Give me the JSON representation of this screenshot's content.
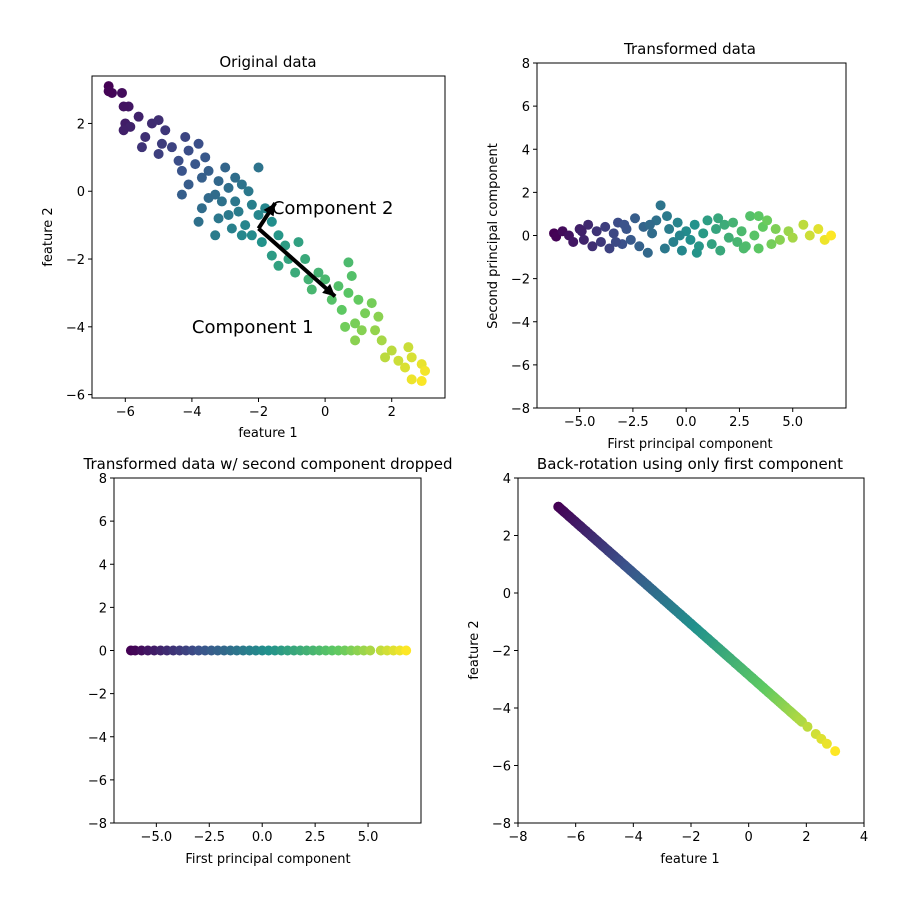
{
  "chart_data": [
    {
      "type": "scatter",
      "title": "Original data",
      "xlabel": "feature 1",
      "ylabel": "feature 2",
      "xlim": [
        -7,
        3.6
      ],
      "ylim": [
        -6.1,
        3.4
      ],
      "xticks": [
        -6,
        -4,
        -2,
        0,
        2
      ],
      "yticks": [
        -6,
        -4,
        -2,
        0,
        2
      ],
      "colormap": [
        "#440154",
        "#3b528b",
        "#21918c",
        "#5ec962",
        "#fde725"
      ],
      "points": [
        [
          -6.5,
          3.1
        ],
        [
          -6.4,
          2.9
        ],
        [
          -6.5,
          2.95
        ],
        [
          -6.1,
          2.9
        ],
        [
          -5.9,
          2.5
        ],
        [
          -6.05,
          2.5
        ],
        [
          -6.0,
          2.0
        ],
        [
          -5.85,
          1.9
        ],
        [
          -6.05,
          1.8
        ],
        [
          -5.6,
          2.2
        ],
        [
          -5.4,
          1.6
        ],
        [
          -5.2,
          2.0
        ],
        [
          -5.0,
          2.1
        ],
        [
          -4.8,
          1.8
        ],
        [
          -5.5,
          1.3
        ],
        [
          -5.0,
          1.1
        ],
        [
          -4.9,
          1.4
        ],
        [
          -4.6,
          1.3
        ],
        [
          -4.4,
          0.9
        ],
        [
          -4.2,
          1.6
        ],
        [
          -4.1,
          1.2
        ],
        [
          -3.8,
          1.4
        ],
        [
          -4.3,
          0.6
        ],
        [
          -3.9,
          0.8
        ],
        [
          -3.7,
          0.4
        ],
        [
          -3.5,
          0.6
        ],
        [
          -3.6,
          1.0
        ],
        [
          -3.2,
          0.3
        ],
        [
          -3.0,
          0.7
        ],
        [
          -2.7,
          0.4
        ],
        [
          -3.3,
          -0.1
        ],
        [
          -2.9,
          0.1
        ],
        [
          -2.5,
          0.2
        ],
        [
          -2.3,
          0.0
        ],
        [
          -2.7,
          -0.3
        ],
        [
          -3.1,
          -0.3
        ],
        [
          -3.7,
          -0.5
        ],
        [
          -3.5,
          -0.2
        ],
        [
          -2.0,
          0.7
        ],
        [
          -2.2,
          -0.4
        ],
        [
          -2.6,
          -0.6
        ],
        [
          -2.9,
          -0.7
        ],
        [
          -3.2,
          -0.8
        ],
        [
          -2.4,
          -1.0
        ],
        [
          -2.0,
          -0.7
        ],
        [
          -1.8,
          -0.5
        ],
        [
          -1.6,
          -0.9
        ],
        [
          -2.2,
          -1.3
        ],
        [
          -2.5,
          -1.3
        ],
        [
          -1.9,
          -1.5
        ],
        [
          -1.4,
          -1.3
        ],
        [
          -1.2,
          -1.6
        ],
        [
          -1.6,
          -1.9
        ],
        [
          -1.1,
          -2.0
        ],
        [
          -0.8,
          -1.5
        ],
        [
          -0.9,
          -2.4
        ],
        [
          -1.4,
          -2.2
        ],
        [
          -0.6,
          -2.0
        ],
        [
          -0.5,
          -2.6
        ],
        [
          -0.2,
          -2.4
        ],
        [
          -0.4,
          -2.9
        ],
        [
          0.0,
          -2.6
        ],
        [
          0.2,
          -3.2
        ],
        [
          0.4,
          -2.8
        ],
        [
          0.7,
          -3.0
        ],
        [
          0.5,
          -3.5
        ],
        [
          0.8,
          -2.5
        ],
        [
          0.7,
          -2.1
        ],
        [
          1.0,
          -3.2
        ],
        [
          1.2,
          -3.6
        ],
        [
          0.9,
          -3.9
        ],
        [
          0.6,
          -4.0
        ],
        [
          1.1,
          -4.1
        ],
        [
          1.4,
          -3.3
        ],
        [
          1.6,
          -3.7
        ],
        [
          1.5,
          -4.1
        ],
        [
          1.7,
          -4.4
        ],
        [
          0.9,
          -4.4
        ],
        [
          1.8,
          -4.9
        ],
        [
          2.0,
          -4.7
        ],
        [
          2.2,
          -5.0
        ],
        [
          2.5,
          -4.6
        ],
        [
          2.6,
          -4.9
        ],
        [
          2.4,
          -5.2
        ],
        [
          2.9,
          -5.1
        ],
        [
          2.6,
          -5.55
        ],
        [
          2.9,
          -5.6
        ],
        [
          3.0,
          -5.3
        ],
        [
          -2.8,
          -1.1
        ],
        [
          -3.3,
          -1.3
        ],
        [
          -3.8,
          -0.9
        ],
        [
          -4.1,
          0.2
        ],
        [
          -4.3,
          -0.1
        ]
      ],
      "arrows": [
        {
          "from": [
            -2.0,
            -1.1
          ],
          "to": [
            0.3,
            -3.1
          ]
        },
        {
          "from": [
            -2.0,
            -1.1
          ],
          "to": [
            -1.5,
            -0.35
          ]
        }
      ],
      "annotations": [
        {
          "text": "Component 2",
          "x": -1.6,
          "y": -0.5
        },
        {
          "text": "Component 1",
          "x": -4.0,
          "y": -4.0
        }
      ]
    },
    {
      "type": "scatter",
      "title": "Transformed data",
      "xlabel": "First principal component",
      "ylabel": "Second principal component",
      "xlim": [
        -7,
        7.5
      ],
      "ylim": [
        -8,
        8
      ],
      "xticks": [
        -5.0,
        -2.5,
        0.0,
        2.5,
        5.0
      ],
      "xtick_labels": [
        "−5.0",
        "−2.5",
        "0.0",
        "2.5",
        "5.0"
      ],
      "yticks": [
        -8,
        -6,
        -4,
        -2,
        0,
        2,
        4,
        6,
        8
      ],
      "colormap": [
        "#440154",
        "#3b528b",
        "#21918c",
        "#5ec962",
        "#fde725"
      ],
      "points": [
        [
          -6.2,
          0.1
        ],
        [
          -6.1,
          -0.05
        ],
        [
          -5.8,
          0.2
        ],
        [
          -5.5,
          0.0
        ],
        [
          -5.3,
          -0.3
        ],
        [
          -5.0,
          0.3
        ],
        [
          -4.8,
          -0.2
        ],
        [
          -4.6,
          0.5
        ],
        [
          -4.4,
          -0.5
        ],
        [
          -4.2,
          0.2
        ],
        [
          -4.0,
          -0.3
        ],
        [
          -3.8,
          0.4
        ],
        [
          -3.6,
          -0.6
        ],
        [
          -3.4,
          0.1
        ],
        [
          -3.2,
          0.6
        ],
        [
          -3.0,
          -0.4
        ],
        [
          -2.8,
          0.3
        ],
        [
          -2.6,
          -0.2
        ],
        [
          -2.4,
          0.8
        ],
        [
          -2.2,
          -0.5
        ],
        [
          -2.0,
          0.4
        ],
        [
          -1.8,
          -0.8
        ],
        [
          -1.6,
          0.1
        ],
        [
          -1.4,
          0.7
        ],
        [
          -1.2,
          1.4
        ],
        [
          -1.0,
          -0.6
        ],
        [
          -0.8,
          0.3
        ],
        [
          -0.6,
          -0.3
        ],
        [
          -0.4,
          0.6
        ],
        [
          -0.2,
          -0.7
        ],
        [
          0.0,
          0.2
        ],
        [
          0.2,
          -0.2
        ],
        [
          0.4,
          0.5
        ],
        [
          0.6,
          -0.5
        ],
        [
          0.8,
          0.1
        ],
        [
          1.0,
          0.7
        ],
        [
          1.2,
          -0.4
        ],
        [
          1.4,
          0.3
        ],
        [
          1.6,
          -0.7
        ],
        [
          1.8,
          0.5
        ],
        [
          2.0,
          -0.1
        ],
        [
          2.2,
          0.6
        ],
        [
          2.4,
          -0.3
        ],
        [
          2.6,
          0.2
        ],
        [
          2.8,
          -0.5
        ],
        [
          3.0,
          0.9
        ],
        [
          3.2,
          0.0
        ],
        [
          3.4,
          -0.6
        ],
        [
          3.6,
          0.4
        ],
        [
          3.8,
          0.7
        ],
        [
          4.0,
          -0.4
        ],
        [
          4.2,
          0.3
        ],
        [
          4.4,
          -0.2
        ],
        [
          4.8,
          0.2
        ],
        [
          5.0,
          -0.1
        ],
        [
          5.5,
          0.5
        ],
        [
          5.8,
          0.0
        ],
        [
          6.2,
          0.3
        ],
        [
          6.5,
          -0.2
        ],
        [
          6.8,
          0.0
        ],
        [
          -4.9,
          0.2
        ],
        [
          -3.3,
          -0.3
        ],
        [
          -1.7,
          0.5
        ],
        [
          -0.9,
          0.9
        ],
        [
          0.5,
          -0.8
        ],
        [
          1.5,
          0.8
        ],
        [
          2.7,
          -0.6
        ],
        [
          3.4,
          0.9
        ],
        [
          -2.9,
          0.5
        ],
        [
          -0.3,
          0.0
        ]
      ]
    },
    {
      "type": "scatter",
      "title": "Transformed data w/ second component dropped",
      "xlabel": "First principal component",
      "ylabel": "",
      "xlim": [
        -7,
        7.5
      ],
      "ylim": [
        -8,
        8
      ],
      "xticks": [
        -5.0,
        -2.5,
        0.0,
        2.5,
        5.0
      ],
      "xtick_labels": [
        "−5.0",
        "−2.5",
        "0.0",
        "2.5",
        "5.0"
      ],
      "yticks": [
        -8,
        -6,
        -4,
        -2,
        0,
        2,
        4,
        6,
        8
      ],
      "colormap": [
        "#440154",
        "#3b528b",
        "#21918c",
        "#5ec962",
        "#fde725"
      ],
      "x_values": [
        -6.2,
        -6.0,
        -5.7,
        -5.4,
        -5.1,
        -4.8,
        -4.5,
        -4.2,
        -3.9,
        -3.6,
        -3.3,
        -3.0,
        -2.7,
        -2.4,
        -2.1,
        -1.8,
        -1.5,
        -1.2,
        -0.9,
        -0.6,
        -0.3,
        0.0,
        0.3,
        0.6,
        0.9,
        1.2,
        1.5,
        1.8,
        2.1,
        2.4,
        2.7,
        3.0,
        3.3,
        3.6,
        3.9,
        4.2,
        4.5,
        4.8,
        5.1,
        5.6,
        5.9,
        6.2,
        6.5,
        6.8
      ],
      "y_value": 0
    },
    {
      "type": "scatter",
      "title": "Back-rotation using only first component",
      "xlabel": "feature 1",
      "ylabel": "feature 2",
      "xlim": [
        -8,
        4
      ],
      "ylim": [
        -8,
        4
      ],
      "xticks": [
        -8,
        -6,
        -4,
        -2,
        0,
        2,
        4
      ],
      "yticks": [
        -8,
        -6,
        -4,
        -2,
        0,
        2,
        4
      ],
      "colormap": [
        "#440154",
        "#3b528b",
        "#21918c",
        "#5ec962",
        "#fde725"
      ],
      "line_from": [
        -6.6,
        3.0
      ],
      "line_to": [
        3.0,
        -5.5
      ],
      "t_values": [
        0,
        0.02,
        0.04,
        0.06,
        0.08,
        0.1,
        0.12,
        0.14,
        0.16,
        0.18,
        0.2,
        0.22,
        0.24,
        0.26,
        0.28,
        0.3,
        0.32,
        0.34,
        0.36,
        0.38,
        0.4,
        0.42,
        0.44,
        0.46,
        0.48,
        0.5,
        0.52,
        0.54,
        0.56,
        0.58,
        0.6,
        0.62,
        0.64,
        0.66,
        0.68,
        0.7,
        0.72,
        0.74,
        0.76,
        0.78,
        0.8,
        0.82,
        0.84,
        0.86,
        0.88,
        0.9,
        0.93,
        0.95,
        0.97,
        1.0
      ]
    }
  ]
}
